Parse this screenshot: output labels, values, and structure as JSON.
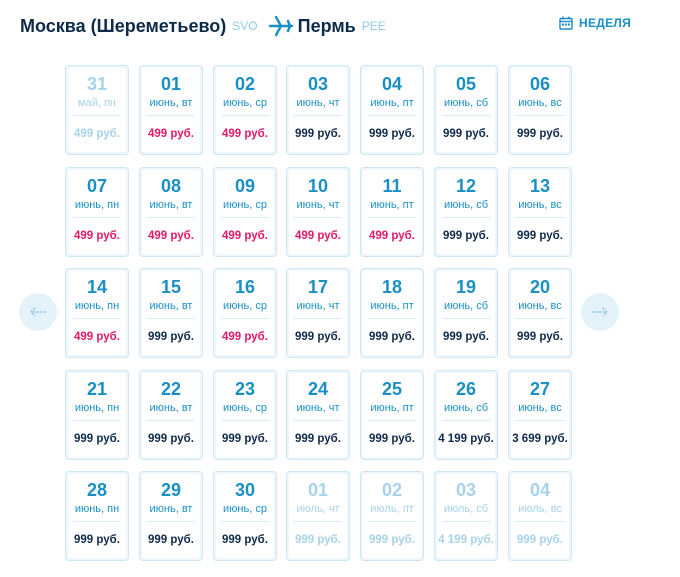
{
  "route": {
    "from_city": "Москва (Шереметьево)",
    "from_code": "SVO",
    "to_city": "Пермь",
    "to_code": "PEE"
  },
  "view_toggle": {
    "label": "НЕДЕЛЯ",
    "icon": "calendar-icon"
  },
  "nav": {
    "prev_icon": "arrow-left-icon",
    "next_icon": "arrow-right-icon"
  },
  "colors": {
    "accent": "#1a8fc4",
    "promo": "#e0196a",
    "dark": "#0e2a4a",
    "inactive": "#a7d3ea"
  },
  "weeks": [
    [
      {
        "day": "31",
        "sub": "май, пн",
        "price": "499 руб.",
        "promo": false,
        "inactive": true
      },
      {
        "day": "01",
        "sub": "июнь, вт",
        "price": "499 руб.",
        "promo": true,
        "inactive": false
      },
      {
        "day": "02",
        "sub": "июнь, ср",
        "price": "499 руб.",
        "promo": true,
        "inactive": false
      },
      {
        "day": "03",
        "sub": "июнь, чт",
        "price": "999 руб.",
        "promo": false,
        "inactive": false
      },
      {
        "day": "04",
        "sub": "июнь, пт",
        "price": "999 руб.",
        "promo": false,
        "inactive": false
      },
      {
        "day": "05",
        "sub": "июнь, сб",
        "price": "999 руб.",
        "promo": false,
        "inactive": false
      },
      {
        "day": "06",
        "sub": "июнь, вс",
        "price": "999 руб.",
        "promo": false,
        "inactive": false
      }
    ],
    [
      {
        "day": "07",
        "sub": "июнь, пн",
        "price": "499 руб.",
        "promo": true,
        "inactive": false
      },
      {
        "day": "08",
        "sub": "июнь, вт",
        "price": "499 руб.",
        "promo": true,
        "inactive": false
      },
      {
        "day": "09",
        "sub": "июнь, ср",
        "price": "499 руб.",
        "promo": true,
        "inactive": false
      },
      {
        "day": "10",
        "sub": "июнь, чт",
        "price": "499 руб.",
        "promo": true,
        "inactive": false
      },
      {
        "day": "11",
        "sub": "июнь, пт",
        "price": "499 руб.",
        "promo": true,
        "inactive": false
      },
      {
        "day": "12",
        "sub": "июнь, сб",
        "price": "999 руб.",
        "promo": false,
        "inactive": false
      },
      {
        "day": "13",
        "sub": "июнь, вс",
        "price": "999 руб.",
        "promo": false,
        "inactive": false
      }
    ],
    [
      {
        "day": "14",
        "sub": "июнь, пн",
        "price": "499 руб.",
        "promo": true,
        "inactive": false
      },
      {
        "day": "15",
        "sub": "июнь, вт",
        "price": "999 руб.",
        "promo": false,
        "inactive": false
      },
      {
        "day": "16",
        "sub": "июнь, ср",
        "price": "499 руб.",
        "promo": true,
        "inactive": false
      },
      {
        "day": "17",
        "sub": "июнь, чт",
        "price": "999 руб.",
        "promo": false,
        "inactive": false
      },
      {
        "day": "18",
        "sub": "июнь, пт",
        "price": "999 руб.",
        "promo": false,
        "inactive": false
      },
      {
        "day": "19",
        "sub": "июнь, сб",
        "price": "999 руб.",
        "promo": false,
        "inactive": false
      },
      {
        "day": "20",
        "sub": "июнь, вс",
        "price": "999 руб.",
        "promo": false,
        "inactive": false
      }
    ],
    [
      {
        "day": "21",
        "sub": "июнь, пн",
        "price": "999 руб.",
        "promo": false,
        "inactive": false
      },
      {
        "day": "22",
        "sub": "июнь, вт",
        "price": "999 руб.",
        "promo": false,
        "inactive": false
      },
      {
        "day": "23",
        "sub": "июнь, ср",
        "price": "999 руб.",
        "promo": false,
        "inactive": false
      },
      {
        "day": "24",
        "sub": "июнь, чт",
        "price": "999 руб.",
        "promo": false,
        "inactive": false
      },
      {
        "day": "25",
        "sub": "июнь, пт",
        "price": "999 руб.",
        "promo": false,
        "inactive": false
      },
      {
        "day": "26",
        "sub": "июнь, сб",
        "price": "4 199 руб.",
        "promo": false,
        "inactive": false
      },
      {
        "day": "27",
        "sub": "июнь, вс",
        "price": "3 699 руб.",
        "promo": false,
        "inactive": false
      }
    ],
    [
      {
        "day": "28",
        "sub": "июнь, пн",
        "price": "999 руб.",
        "promo": false,
        "inactive": false
      },
      {
        "day": "29",
        "sub": "июнь, вт",
        "price": "999 руб.",
        "promo": false,
        "inactive": false
      },
      {
        "day": "30",
        "sub": "июнь, ср",
        "price": "999 руб.",
        "promo": false,
        "inactive": false
      },
      {
        "day": "01",
        "sub": "июль, чт",
        "price": "999 руб.",
        "promo": false,
        "inactive": true
      },
      {
        "day": "02",
        "sub": "июль, пт",
        "price": "999 руб.",
        "promo": false,
        "inactive": true
      },
      {
        "day": "03",
        "sub": "июль, сб",
        "price": "4 199 руб.",
        "promo": false,
        "inactive": true
      },
      {
        "day": "04",
        "sub": "июль, вс",
        "price": "999 руб.",
        "promo": false,
        "inactive": true
      }
    ]
  ]
}
